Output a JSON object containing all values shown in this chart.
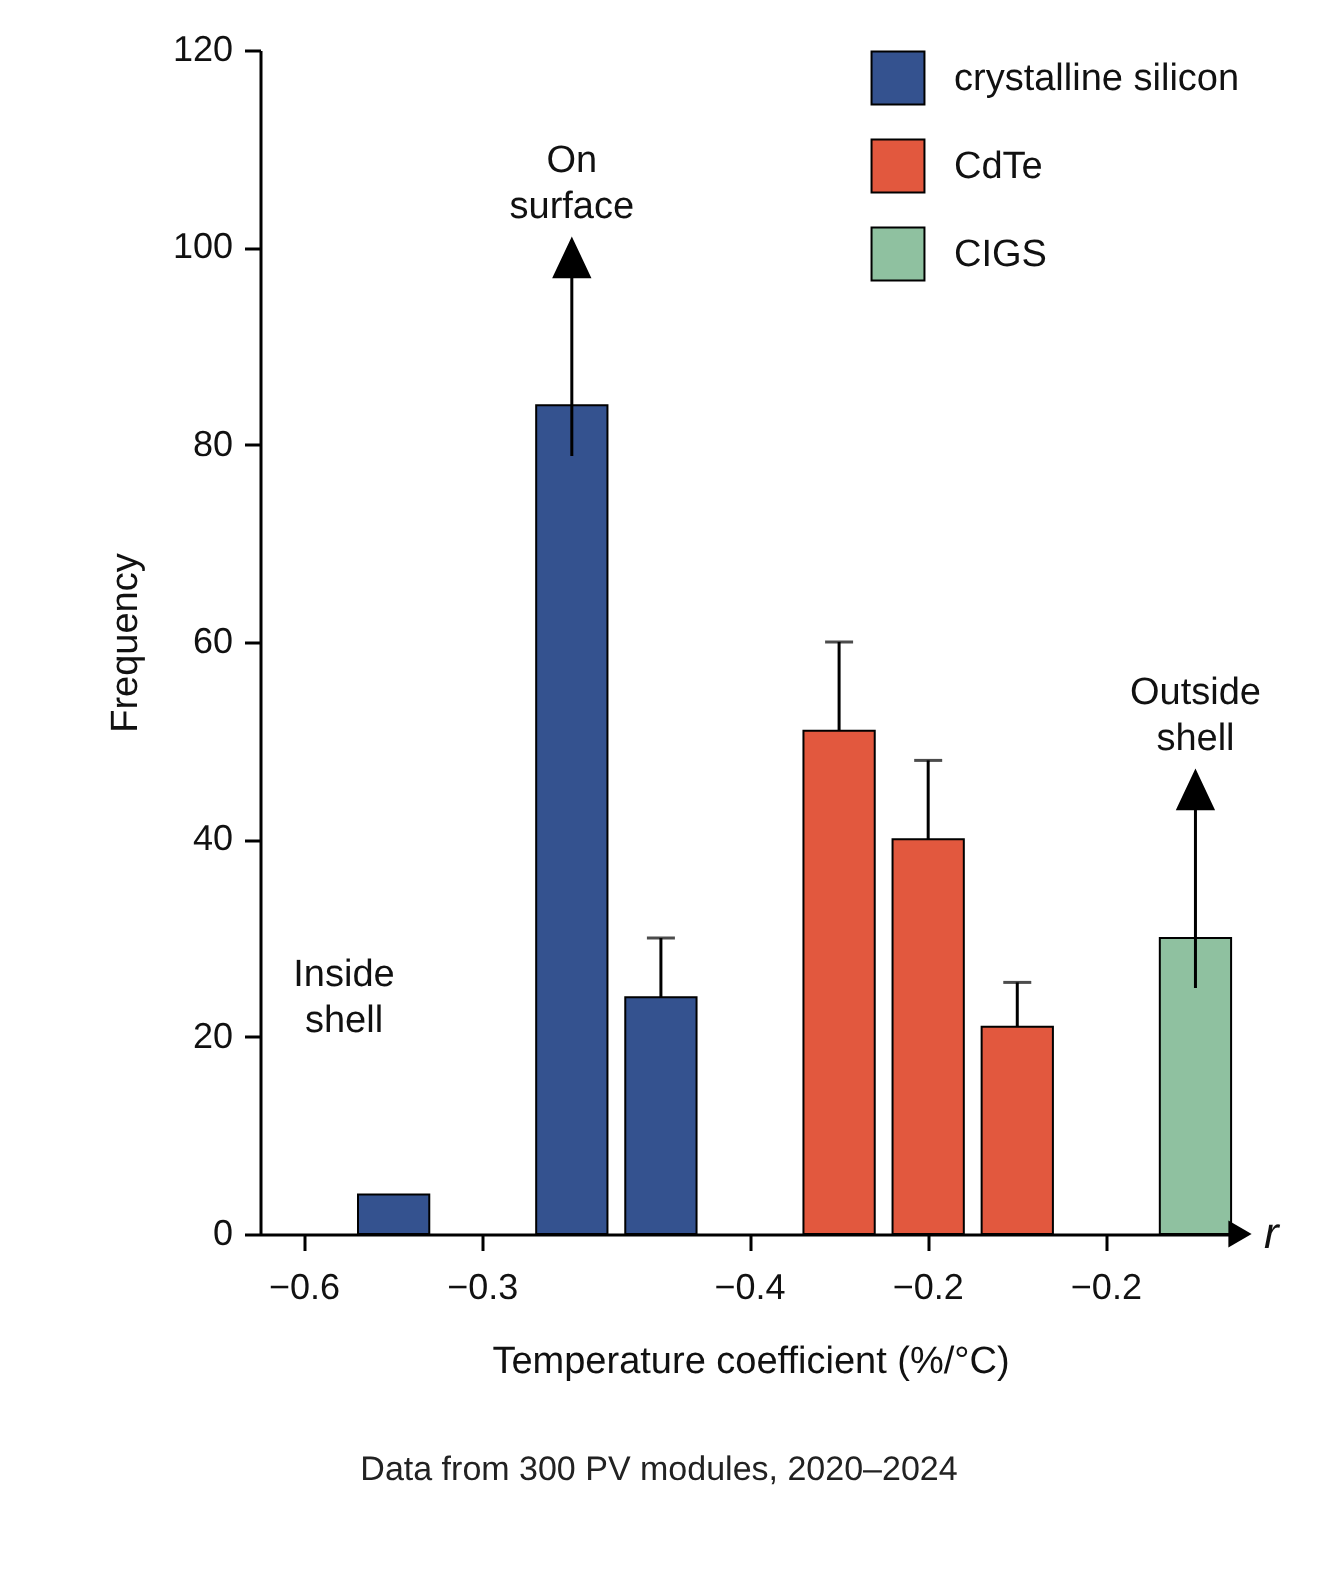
{
  "chart_data": {
    "type": "bar",
    "xlabel": "Temperature coefficient (%/°C)",
    "ylabel": "Frequency",
    "categories": [
      "−0.6",
      null,
      "−0.3",
      null,
      null,
      "−0.4",
      null,
      "−0.2",
      null,
      "−0.2",
      null
    ],
    "ylim": [
      0,
      120
    ],
    "yticks": [
      0,
      20,
      40,
      60,
      80,
      100,
      120
    ],
    "series": [
      {
        "name": "crystalline silicon",
        "color": "#34528f",
        "values": [
          null,
          4,
          null,
          84,
          24,
          null,
          null,
          null,
          null,
          null,
          null
        ],
        "errors": [
          null,
          null,
          null,
          null,
          6,
          null,
          null,
          null,
          null,
          null,
          null
        ]
      },
      {
        "name": "CdTe",
        "color": "#e2583e",
        "values": [
          null,
          null,
          null,
          null,
          null,
          null,
          51,
          40,
          21,
          null,
          null
        ],
        "errors": [
          null,
          null,
          null,
          null,
          null,
          null,
          9,
          8,
          4.5,
          null,
          null
        ]
      },
      {
        "name": "CIGS",
        "color": "#8fc1a0",
        "values": [
          null,
          null,
          null,
          null,
          null,
          null,
          null,
          null,
          null,
          null,
          30
        ]
      }
    ],
    "legend": "top right",
    "grid": false,
    "annotations": [
      "r",
      "On surface",
      "Outside shell",
      "Inside shell",
      "Data from 300 PV modules, 2020–2024"
    ]
  }
}
